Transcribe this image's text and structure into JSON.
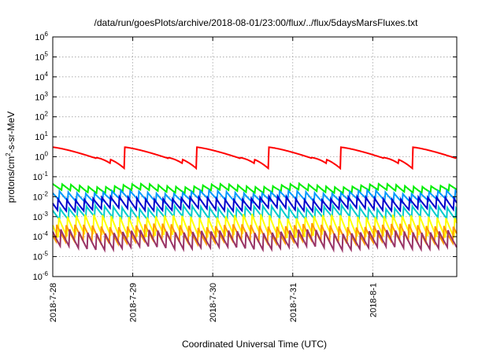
{
  "chart_data": {
    "type": "line",
    "title": "/data/run/goesPlots/archive/2018-08-01/23:00/flux/../flux/5daysMarsFluxes.txt",
    "xlabel": "Coordinated Universal Time (UTC)",
    "ylabel": "protons/cm2-s-sr-MeV",
    "ylabel_parts": {
      "before": "protons/cm",
      "sup": "2",
      "after": "-s-sr-MeV"
    },
    "yscale": "log",
    "ylim_exp": [
      -6,
      6
    ],
    "y_ticks": [
      {
        "base": "10",
        "exp": "-6"
      },
      {
        "base": "10",
        "exp": "-5"
      },
      {
        "base": "10",
        "exp": "-4"
      },
      {
        "base": "10",
        "exp": "-3"
      },
      {
        "base": "10",
        "exp": "-2"
      },
      {
        "base": "10",
        "exp": "-1"
      },
      {
        "base": "10",
        "exp": "0"
      },
      {
        "base": "10",
        "exp": "1"
      },
      {
        "base": "10",
        "exp": "2"
      },
      {
        "base": "10",
        "exp": "3"
      },
      {
        "base": "10",
        "exp": "4"
      },
      {
        "base": "10",
        "exp": "5"
      },
      {
        "base": "10",
        "exp": "6"
      }
    ],
    "xlim_days": [
      0,
      5.05
    ],
    "x_ticks": [
      {
        "label": "2018-7-28",
        "day": 0
      },
      {
        "label": "2018-7-29",
        "day": 1
      },
      {
        "label": "2018-7-30",
        "day": 2
      },
      {
        "label": "2018-7-31",
        "day": 3
      },
      {
        "label": "2018-8-1",
        "day": 4
      }
    ],
    "grid": true,
    "series": [
      {
        "color": "#ff0000",
        "period_days": 0.9,
        "phase": 0.0,
        "peak": 3.0,
        "valley": 0.25,
        "subperiod": 0.18
      },
      {
        "color": "#00ee00",
        "period_days": 0.11,
        "phase": 0.0,
        "peak": 0.038,
        "valley": 0.018
      },
      {
        "color": "#0099ff",
        "period_days": 0.11,
        "phase": 0.03,
        "peak": 0.018,
        "valley": 0.006
      },
      {
        "color": "#0000cc",
        "period_days": 0.11,
        "phase": 0.05,
        "peak": 0.009,
        "valley": 0.0022
      },
      {
        "color": "#00cccc",
        "period_days": 0.11,
        "phase": 0.02,
        "peak": 0.0032,
        "valley": 0.0008
      },
      {
        "color": "#ffff00",
        "period_days": 0.11,
        "phase": 0.04,
        "peak": 0.0012,
        "valley": 0.0001
      },
      {
        "color": "#ff9900",
        "period_days": 0.11,
        "phase": 0.06,
        "peak": 0.0004,
        "valley": 5e-05
      },
      {
        "color": "#993366",
        "period_days": 0.11,
        "phase": 0.01,
        "peak": 0.0002,
        "valley": 2.5e-05
      }
    ]
  }
}
